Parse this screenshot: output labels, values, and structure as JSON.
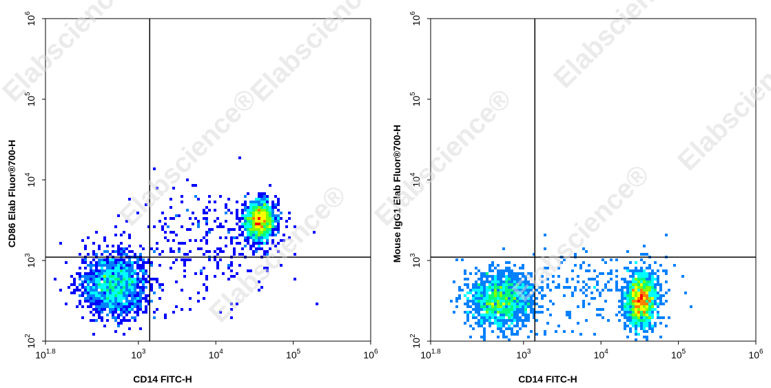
{
  "watermark": "Elabscience®",
  "colors": {
    "axis": "#000000",
    "gate": "#000000",
    "density_scale": [
      "#0000ff",
      "#0080ff",
      "#00ffff",
      "#00ff80",
      "#80ff00",
      "#ffff00",
      "#ff8000",
      "#ff0000"
    ]
  },
  "chart_data": [
    {
      "type": "scatter",
      "subtype": "flow-cytometry-density",
      "xlabel": "CD14 FITC-H",
      "ylabel": "CD86 Elab Fluor®700-H",
      "x_scale": "log",
      "y_scale": "log",
      "xlim": [
        63.1,
        1000000
      ],
      "ylim": [
        100,
        1000000
      ],
      "x_ticks": [
        {
          "base": "10",
          "exp": "1.8",
          "value": 63.1
        },
        {
          "base": "10",
          "exp": "3",
          "value": 1000
        },
        {
          "base": "10",
          "exp": "4",
          "value": 10000
        },
        {
          "base": "10",
          "exp": "5",
          "value": 100000
        },
        {
          "base": "10",
          "exp": "6",
          "value": 1000000
        }
      ],
      "y_ticks": [
        {
          "base": "10",
          "exp": "2",
          "value": 100
        },
        {
          "base": "10",
          "exp": "3",
          "value": 1000
        },
        {
          "base": "10",
          "exp": "4",
          "value": 10000
        },
        {
          "base": "10",
          "exp": "5",
          "value": 100000
        },
        {
          "base": "10",
          "exp": "6",
          "value": 1000000
        }
      ],
      "quadrant_gate": {
        "x": 1400,
        "y": 1100
      },
      "populations": [
        {
          "x_center": 500,
          "y_center": 500,
          "x_spread": 0.22,
          "y_spread": 0.2,
          "count": 1400,
          "peak_density": 0.55
        },
        {
          "x_center": 37000,
          "y_center": 3100,
          "x_spread": 0.1,
          "y_spread": 0.12,
          "count": 1500,
          "peak_density": 1.0
        },
        {
          "x_center": 8000,
          "y_center": 1800,
          "x_spread": 0.5,
          "y_spread": 0.35,
          "count": 260,
          "peak_density": 0.15
        }
      ]
    },
    {
      "type": "scatter",
      "subtype": "flow-cytometry-density",
      "xlabel": "CD14 FITC-H",
      "ylabel": "Mouse IgG1 Elab Fluor®700-H",
      "x_scale": "log",
      "y_scale": "log",
      "xlim": [
        63.1,
        1000000
      ],
      "ylim": [
        100,
        1000000
      ],
      "x_ticks": [
        {
          "base": "10",
          "exp": "1.8",
          "value": 63.1
        },
        {
          "base": "10",
          "exp": "3",
          "value": 1000
        },
        {
          "base": "10",
          "exp": "4",
          "value": 10000
        },
        {
          "base": "10",
          "exp": "5",
          "value": 100000
        },
        {
          "base": "10",
          "exp": "6",
          "value": 1000000
        }
      ],
      "y_ticks": [
        {
          "base": "10",
          "exp": "2",
          "value": 100
        },
        {
          "base": "10",
          "exp": "3",
          "value": 1000
        },
        {
          "base": "10",
          "exp": "4",
          "value": 10000
        },
        {
          "base": "10",
          "exp": "5",
          "value": 100000
        },
        {
          "base": "10",
          "exp": "6",
          "value": 1000000
        }
      ],
      "quadrant_gate": {
        "x": 1400,
        "y": 1100
      },
      "populations": [
        {
          "x_center": 500,
          "y_center": 320,
          "x_spread": 0.22,
          "y_spread": 0.18,
          "count": 1300,
          "peak_density": 0.55
        },
        {
          "x_center": 33000,
          "y_center": 330,
          "x_spread": 0.1,
          "y_spread": 0.17,
          "count": 1500,
          "peak_density": 1.0
        },
        {
          "x_center": 7000,
          "y_center": 420,
          "x_spread": 0.5,
          "y_spread": 0.25,
          "count": 200,
          "peak_density": 0.15
        }
      ]
    }
  ]
}
